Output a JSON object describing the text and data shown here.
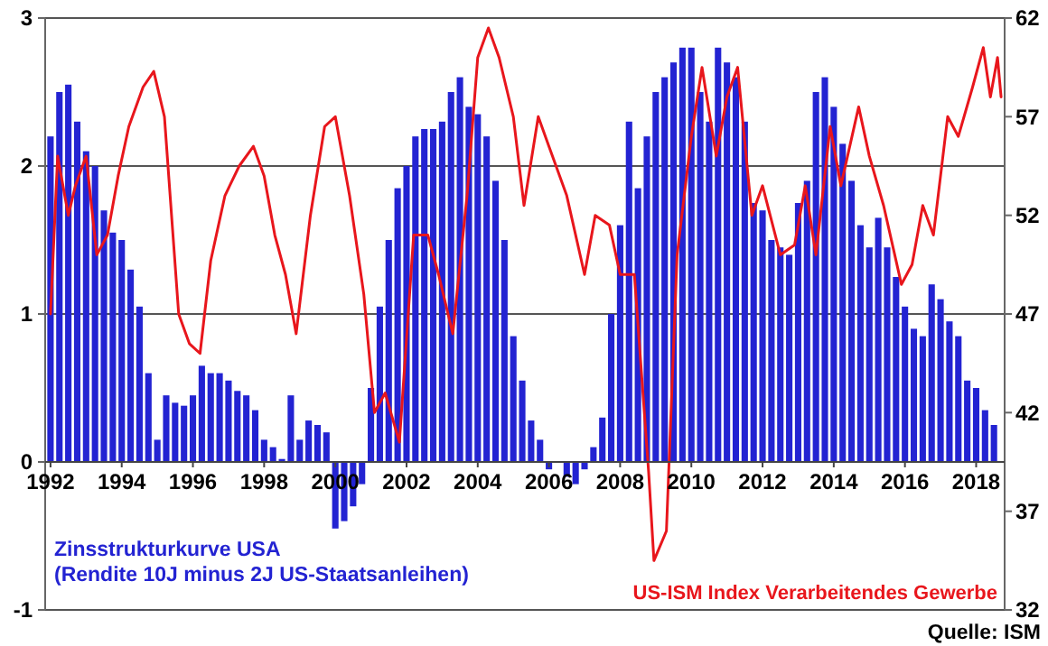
{
  "chart_data": {
    "type": "bar",
    "xlim": [
      1991.85,
      2018.8
    ],
    "xticks": [
      1992,
      1994,
      1996,
      1998,
      2000,
      2002,
      2004,
      2006,
      2008,
      2010,
      2012,
      2014,
      2016,
      2018
    ],
    "ylim": [
      -1,
      3
    ],
    "yticks": [
      -1,
      0,
      1,
      2,
      3
    ],
    "y2lim": [
      32,
      62
    ],
    "y2ticks": [
      32,
      37,
      42,
      47,
      52,
      57,
      62
    ],
    "grid": "y",
    "annotations": [
      "Quelle: ISM"
    ],
    "series": [
      {
        "name": "Zinsstrukturkurve USA\n(Rendite 10J minus 2J US-Staatsanleihen)",
        "color": "#2323d2",
        "x": [
          1992,
          1992.25,
          1992.5,
          1992.75,
          1993,
          1993.25,
          1993.5,
          1993.75,
          1994,
          1994.25,
          1994.5,
          1994.75,
          1995,
          1995.25,
          1995.5,
          1995.75,
          1996,
          1996.25,
          1996.5,
          1996.75,
          1997,
          1997.25,
          1997.5,
          1997.75,
          1998,
          1998.25,
          1998.5,
          1998.75,
          1999,
          1999.25,
          1999.5,
          1999.75,
          2000,
          2000.25,
          2000.5,
          2000.75,
          2001,
          2001.25,
          2001.5,
          2001.75,
          2002,
          2002.25,
          2002.5,
          2002.75,
          2003,
          2003.25,
          2003.5,
          2003.75,
          2004,
          2004.25,
          2004.5,
          2004.75,
          2005,
          2005.25,
          2005.5,
          2005.75,
          2006,
          2006.25,
          2006.5,
          2006.75,
          2007,
          2007.25,
          2007.5,
          2007.75,
          2008,
          2008.25,
          2008.5,
          2008.75,
          2009,
          2009.25,
          2009.5,
          2009.75,
          2010,
          2010.25,
          2010.5,
          2010.75,
          2011,
          2011.25,
          2011.5,
          2011.75,
          2012,
          2012.25,
          2012.5,
          2012.75,
          2013,
          2013.25,
          2013.5,
          2013.75,
          2014,
          2014.25,
          2014.5,
          2014.75,
          2015,
          2015.25,
          2015.5,
          2015.75,
          2016,
          2016.25,
          2016.5,
          2016.75,
          2017,
          2017.25,
          2017.5,
          2017.75,
          2018,
          2018.25,
          2018.5
        ],
        "values": [
          2.2,
          2.5,
          2.55,
          2.3,
          2.1,
          2.0,
          1.7,
          1.55,
          1.5,
          1.3,
          1.05,
          0.6,
          0.15,
          0.45,
          0.4,
          0.38,
          0.45,
          0.65,
          0.6,
          0.6,
          0.55,
          0.48,
          0.45,
          0.35,
          0.15,
          0.1,
          0.02,
          0.45,
          0.15,
          0.28,
          0.25,
          0.2,
          -0.45,
          -0.4,
          -0.3,
          -0.15,
          0.5,
          1.05,
          1.5,
          1.85,
          2.0,
          2.2,
          2.25,
          2.25,
          2.3,
          2.5,
          2.6,
          2.4,
          2.35,
          2.2,
          1.9,
          1.5,
          0.85,
          0.55,
          0.28,
          0.15,
          -0.05,
          0.0,
          -0.1,
          -0.15,
          -0.05,
          0.1,
          0.3,
          1.0,
          1.6,
          2.3,
          1.85,
          2.2,
          2.5,
          2.6,
          2.7,
          2.8,
          2.8,
          2.5,
          2.3,
          2.8,
          2.7,
          2.6,
          2.3,
          1.75,
          1.7,
          1.5,
          1.45,
          1.4,
          1.75,
          1.9,
          2.5,
          2.6,
          2.4,
          2.15,
          1.9,
          1.6,
          1.45,
          1.65,
          1.45,
          1.25,
          1.05,
          0.9,
          0.85,
          1.2,
          1.1,
          0.95,
          0.85,
          0.55,
          0.5,
          0.35,
          0.25
        ]
      },
      {
        "name": "US-ISM Index Verarbeitendes Gewerbe",
        "type": "line",
        "axis": "y2",
        "color": "#e8161c",
        "x": [
          1992,
          1992.2,
          1992.5,
          1992.7,
          1993,
          1993.3,
          1993.6,
          1993.9,
          1994.2,
          1994.6,
          1994.9,
          1995.2,
          1995.6,
          1995.9,
          1996.2,
          1996.5,
          1996.9,
          1997.3,
          1997.7,
          1998,
          1998.3,
          1998.6,
          1998.9,
          1999.3,
          1999.7,
          2000,
          2000.4,
          2000.8,
          2001.1,
          2001.4,
          2001.8,
          2002.2,
          2002.6,
          2002.9,
          2003.3,
          2003.7,
          2004,
          2004.3,
          2004.6,
          2005,
          2005.3,
          2005.7,
          2006,
          2006.5,
          2007,
          2007.3,
          2007.7,
          2008,
          2008.4,
          2008.8,
          2008.95,
          2009.3,
          2009.6,
          2010,
          2010.3,
          2010.7,
          2011,
          2011.3,
          2011.7,
          2012,
          2012.5,
          2012.9,
          2013.2,
          2013.5,
          2013.9,
          2014.2,
          2014.7,
          2015,
          2015.4,
          2015.9,
          2016.2,
          2016.5,
          2016.8,
          2017.2,
          2017.5,
          2017.9,
          2018.2,
          2018.4,
          2018.6,
          2018.7
        ],
        "values": [
          47,
          55,
          52,
          53.5,
          55,
          50,
          51,
          54,
          56.5,
          58.5,
          59.3,
          57,
          47,
          45.5,
          45,
          49.7,
          53,
          54.5,
          55.5,
          54,
          51,
          49,
          46,
          52,
          56.5,
          57,
          53,
          48,
          42,
          43,
          40.5,
          51,
          51,
          49,
          46,
          53,
          60,
          61.5,
          60,
          57,
          52.5,
          57,
          55.5,
          53,
          49,
          52,
          51.5,
          49,
          49,
          39,
          34.5,
          36,
          50,
          56,
          59.5,
          55,
          58,
          59.5,
          52,
          53.5,
          50,
          50.5,
          53.5,
          50,
          56.5,
          53.5,
          57.5,
          55,
          52.5,
          48.5,
          49.5,
          52.5,
          51,
          57,
          56,
          58.5,
          60.5,
          58,
          60,
          58
        ]
      }
    ]
  }
}
